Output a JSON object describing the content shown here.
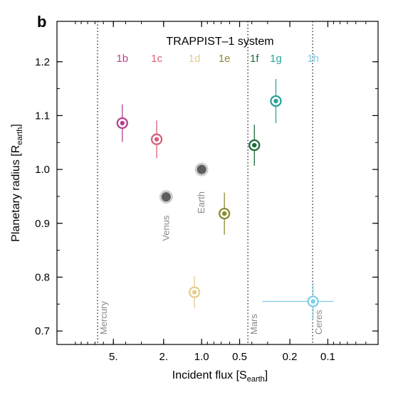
{
  "chart_data": {
    "type": "scatter",
    "panel_label": "b",
    "title": "TRAPPIST–1 system",
    "xlabel": "Incident flux [S",
    "xlabel_sub": "earth",
    "xlabel_end": "]",
    "ylabel": "Planetary radius [R",
    "ylabel_sub": "earth",
    "ylabel_end": "]",
    "x_scale": "log",
    "x_reversed": true,
    "xlim": [
      14,
      0.04
    ],
    "ylim": [
      0.675,
      1.275
    ],
    "x_ticks": [
      {
        "value": 5,
        "label": "5."
      },
      {
        "value": 2,
        "label": "2."
      },
      {
        "value": 1,
        "label": "1.0"
      },
      {
        "value": 0.5,
        "label": "0.5"
      },
      {
        "value": 0.2,
        "label": "0.2"
      },
      {
        "value": 0.1,
        "label": "0.1"
      }
    ],
    "y_ticks": [
      {
        "value": 0.7,
        "label": "0.7"
      },
      {
        "value": 0.8,
        "label": "0.8"
      },
      {
        "value": 0.9,
        "label": "0.9"
      },
      {
        "value": 1.0,
        "label": "1.0"
      },
      {
        "value": 1.1,
        "label": "1.1"
      },
      {
        "value": 1.2,
        "label": "1.2"
      }
    ],
    "grid": false,
    "series": [
      {
        "label": "1b",
        "x": 4.25,
        "y": 1.086,
        "yerr": 0.035,
        "xerr": [
          0,
          0
        ],
        "color": "#b5428c",
        "label_x": 4.25
      },
      {
        "label": "1c",
        "x": 2.27,
        "y": 1.056,
        "yerr": 0.035,
        "xerr": [
          0,
          0
        ],
        "color": "#d9607a",
        "label_x": 2.27
      },
      {
        "label": "1d",
        "x": 1.14,
        "y": 0.772,
        "yerr": 0.03,
        "xerr": [
          0,
          0
        ],
        "color": "#e6cd8a",
        "label_x": 1.14
      },
      {
        "label": "1e",
        "x": 0.66,
        "y": 0.918,
        "yerr": 0.039,
        "xerr": [
          0,
          0
        ],
        "color": "#8c8a2e",
        "label_x": 0.66
      },
      {
        "label": "1f",
        "x": 0.382,
        "y": 1.045,
        "yerr": 0.038,
        "xerr": [
          0,
          0
        ],
        "color": "#1e6b3a",
        "label_x": 0.382
      },
      {
        "label": "1g",
        "x": 0.258,
        "y": 1.127,
        "yerr": 0.041,
        "xerr": [
          0,
          0
        ],
        "color": "#2aa39a",
        "label_x": 0.258
      },
      {
        "label": "1h",
        "x": 0.131,
        "y": 0.755,
        "yerr": 0.035,
        "xerr": [
          0.2,
          0.041
        ],
        "color": "#7fcde6",
        "label_x": 0.131
      }
    ],
    "reference_planets": [
      {
        "label": "Venus",
        "x": 1.91,
        "y": 0.949,
        "color": "#5e5e5e"
      },
      {
        "label": "Earth",
        "x": 1.0,
        "y": 1.0,
        "color": "#5e5e5e"
      }
    ],
    "reference_lines": [
      {
        "label": "Mercury",
        "x": 6.67
      },
      {
        "label": "Mars",
        "x": 0.43
      },
      {
        "label": "Ceres",
        "x": 0.132
      }
    ]
  }
}
